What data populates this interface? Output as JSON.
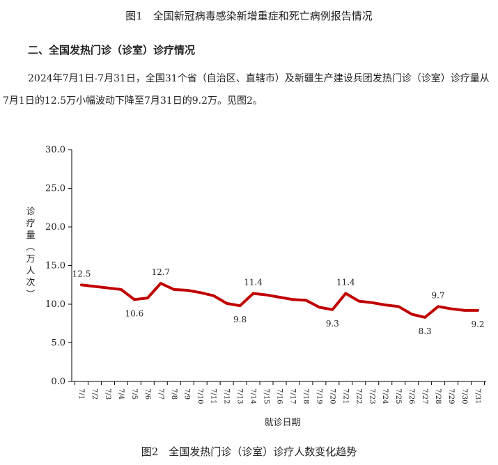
{
  "figure1_caption": "图1　全国新冠病毒感染新增重症和死亡病例报告情况",
  "section_heading": "二、全国发热门诊（诊室）诊疗情况",
  "paragraph": "2024年7月1日-7月31日，全国31个省（自治区、直辖市）及新疆生产建设兵团发热门诊（诊室）诊疗量从7月1日的12.5万小幅波动下降至7月31日的9.2万。见图2。",
  "figure2_caption": "图2　全国发热门诊（诊室）诊疗人数变化趋势",
  "chart_data": {
    "type": "line",
    "title": "",
    "xlabel": "就诊日期",
    "ylabel_chars": [
      "诊",
      "疗",
      "量",
      "（",
      "万",
      "人",
      "次",
      "）"
    ],
    "ylim": [
      0,
      30
    ],
    "yticks": [
      "0.0",
      "5.0",
      "10.0",
      "15.0",
      "20.0",
      "25.0",
      "30.0"
    ],
    "categories": [
      "7/1",
      "7/2",
      "7/3",
      "7/4",
      "7/5",
      "7/6",
      "7/7",
      "7/8",
      "7/9",
      "7/10",
      "7/11",
      "7/12",
      "7/13",
      "7/14",
      "7/15",
      "7/16",
      "7/17",
      "7/18",
      "7/19",
      "7/20",
      "7/21",
      "7/22",
      "7/23",
      "7/24",
      "7/25",
      "7/26",
      "7/27",
      "7/28",
      "7/29",
      "7/30",
      "7/31"
    ],
    "series": [
      {
        "values": [
          12.5,
          12.3,
          12.1,
          11.9,
          10.6,
          10.8,
          12.7,
          11.9,
          11.8,
          11.5,
          11.1,
          10.1,
          9.8,
          11.4,
          11.2,
          10.9,
          10.6,
          10.5,
          9.6,
          9.3,
          11.4,
          10.4,
          10.2,
          9.9,
          9.7,
          8.7,
          8.3,
          9.7,
          9.4,
          9.2,
          9.2
        ]
      }
    ],
    "data_labels": [
      {
        "index": 0,
        "text": "12.5",
        "position": "above"
      },
      {
        "index": 4,
        "text": "10.6",
        "position": "below"
      },
      {
        "index": 6,
        "text": "12.7",
        "position": "above"
      },
      {
        "index": 12,
        "text": "9.8",
        "position": "below"
      },
      {
        "index": 13,
        "text": "11.4",
        "position": "above"
      },
      {
        "index": 19,
        "text": "9.3",
        "position": "below"
      },
      {
        "index": 20,
        "text": "11.4",
        "position": "above"
      },
      {
        "index": 26,
        "text": "8.3",
        "position": "below"
      },
      {
        "index": 27,
        "text": "9.7",
        "position": "above"
      },
      {
        "index": 30,
        "text": "9.2",
        "position": "below"
      }
    ],
    "line_color": "#c00000",
    "grid": false,
    "legend": "none"
  }
}
